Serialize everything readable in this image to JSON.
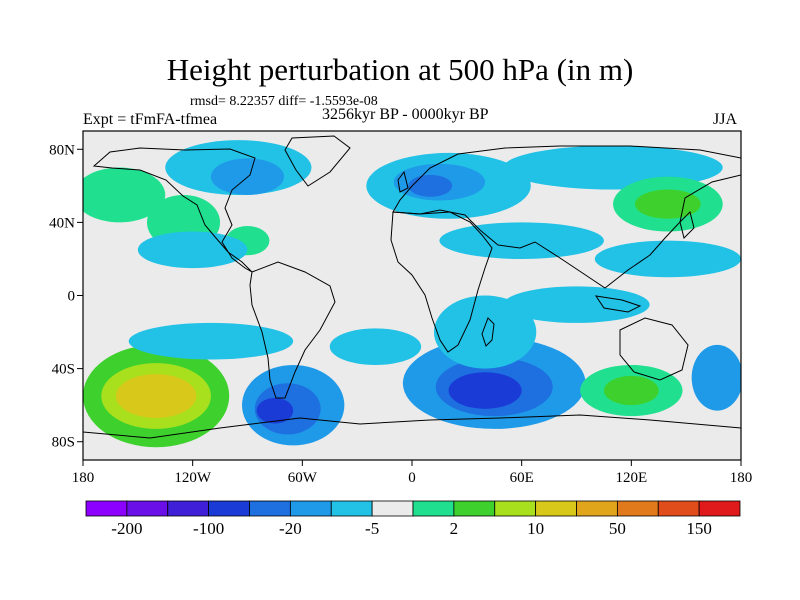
{
  "title": "Height perturbation at 500 hPa (in m)",
  "stats": "rmsd= 8.22357 diff= -1.5593e-08",
  "experiment": "Expt = tFmFA-tfmea",
  "period": "3256kyr BP - 0000kyr BP",
  "season": "JJA",
  "map": {
    "projection": "cylindrical-equidistant",
    "lon_range": [
      -180,
      180
    ],
    "lat_range": [
      -90,
      90
    ],
    "x_ticks": [
      {
        "lon": -180,
        "label": "180"
      },
      {
        "lon": -120,
        "label": "120W"
      },
      {
        "lon": -60,
        "label": "60W"
      },
      {
        "lon": 0,
        "label": "0"
      },
      {
        "lon": 60,
        "label": "60E"
      },
      {
        "lon": 120,
        "label": "120E"
      },
      {
        "lon": 180,
        "label": "180"
      }
    ],
    "y_ticks": [
      {
        "lat": 80,
        "label": "80N"
      },
      {
        "lat": 40,
        "label": "40N"
      },
      {
        "lat": 0,
        "label": "0"
      },
      {
        "lat": -40,
        "label": "40S"
      },
      {
        "lat": -80,
        "label": "80S"
      }
    ],
    "blobs": [
      {
        "lon": -140,
        "lat": -55,
        "rx": 40,
        "ry": 28,
        "level": 9
      },
      {
        "lon": -140,
        "lat": -55,
        "rx": 30,
        "ry": 18,
        "level": 10
      },
      {
        "lon": -140,
        "lat": -55,
        "rx": 22,
        "ry": 12,
        "level": 11
      },
      {
        "lon": -65,
        "lat": -60,
        "rx": 28,
        "ry": 22,
        "level": 5
      },
      {
        "lon": -68,
        "lat": -62,
        "rx": 18,
        "ry": 14,
        "level": 4
      },
      {
        "lon": -75,
        "lat": -63,
        "rx": 10,
        "ry": 7,
        "level": 3
      },
      {
        "lon": 45,
        "lat": -48,
        "rx": 50,
        "ry": 25,
        "level": 5
      },
      {
        "lon": 45,
        "lat": -50,
        "rx": 32,
        "ry": 16,
        "level": 4
      },
      {
        "lon": 40,
        "lat": -52,
        "rx": 20,
        "ry": 10,
        "level": 3
      },
      {
        "lon": 40,
        "lat": -20,
        "rx": 28,
        "ry": 20,
        "level": 6
      },
      {
        "lon": 120,
        "lat": -52,
        "rx": 28,
        "ry": 14,
        "level": 8
      },
      {
        "lon": 120,
        "lat": -52,
        "rx": 15,
        "ry": 8,
        "level": 9
      },
      {
        "lon": 167,
        "lat": -45,
        "rx": 14,
        "ry": 18,
        "level": 5
      },
      {
        "lon": -95,
        "lat": 70,
        "rx": 40,
        "ry": 15,
        "level": 6
      },
      {
        "lon": -90,
        "lat": 65,
        "rx": 20,
        "ry": 10,
        "level": 5
      },
      {
        "lon": 20,
        "lat": 60,
        "rx": 45,
        "ry": 18,
        "level": 6
      },
      {
        "lon": 15,
        "lat": 62,
        "rx": 25,
        "ry": 10,
        "level": 5
      },
      {
        "lon": 10,
        "lat": 60,
        "rx": 12,
        "ry": 6,
        "level": 4
      },
      {
        "lon": 110,
        "lat": 70,
        "rx": 60,
        "ry": 12,
        "level": 6
      },
      {
        "lon": 140,
        "lat": 50,
        "rx": 30,
        "ry": 15,
        "level": 8
      },
      {
        "lon": 140,
        "lat": 50,
        "rx": 18,
        "ry": 8,
        "level": 9
      },
      {
        "lon": -160,
        "lat": 55,
        "rx": 25,
        "ry": 15,
        "level": 8
      },
      {
        "lon": -125,
        "lat": 40,
        "rx": 20,
        "ry": 15,
        "level": 8
      },
      {
        "lon": -90,
        "lat": 30,
        "rx": 12,
        "ry": 8,
        "level": 8
      },
      {
        "lon": -120,
        "lat": 25,
        "rx": 30,
        "ry": 10,
        "level": 6
      },
      {
        "lon": 60,
        "lat": 30,
        "rx": 45,
        "ry": 10,
        "level": 6
      },
      {
        "lon": 140,
        "lat": 20,
        "rx": 40,
        "ry": 10,
        "level": 6
      },
      {
        "lon": -110,
        "lat": -25,
        "rx": 45,
        "ry": 10,
        "level": 6
      },
      {
        "lon": -20,
        "lat": -28,
        "rx": 25,
        "ry": 10,
        "level": 6
      },
      {
        "lon": 90,
        "lat": -5,
        "rx": 40,
        "ry": 10,
        "level": 6
      }
    ]
  },
  "colorbar": {
    "colors": [
      "#8b00ff",
      "#6a0fe8",
      "#3f20d8",
      "#1a3bd6",
      "#1e6fe0",
      "#1f9ae8",
      "#22c1e6",
      "#ebebeb",
      "#20e090",
      "#3ed12e",
      "#a8e01e",
      "#d8c81a",
      "#e0a51a",
      "#e07a1a",
      "#e04d1a",
      "#e01a1a"
    ],
    "labels": [
      "-200",
      "-100",
      "-20",
      "-5",
      "2",
      "10",
      "50",
      "150"
    ]
  }
}
